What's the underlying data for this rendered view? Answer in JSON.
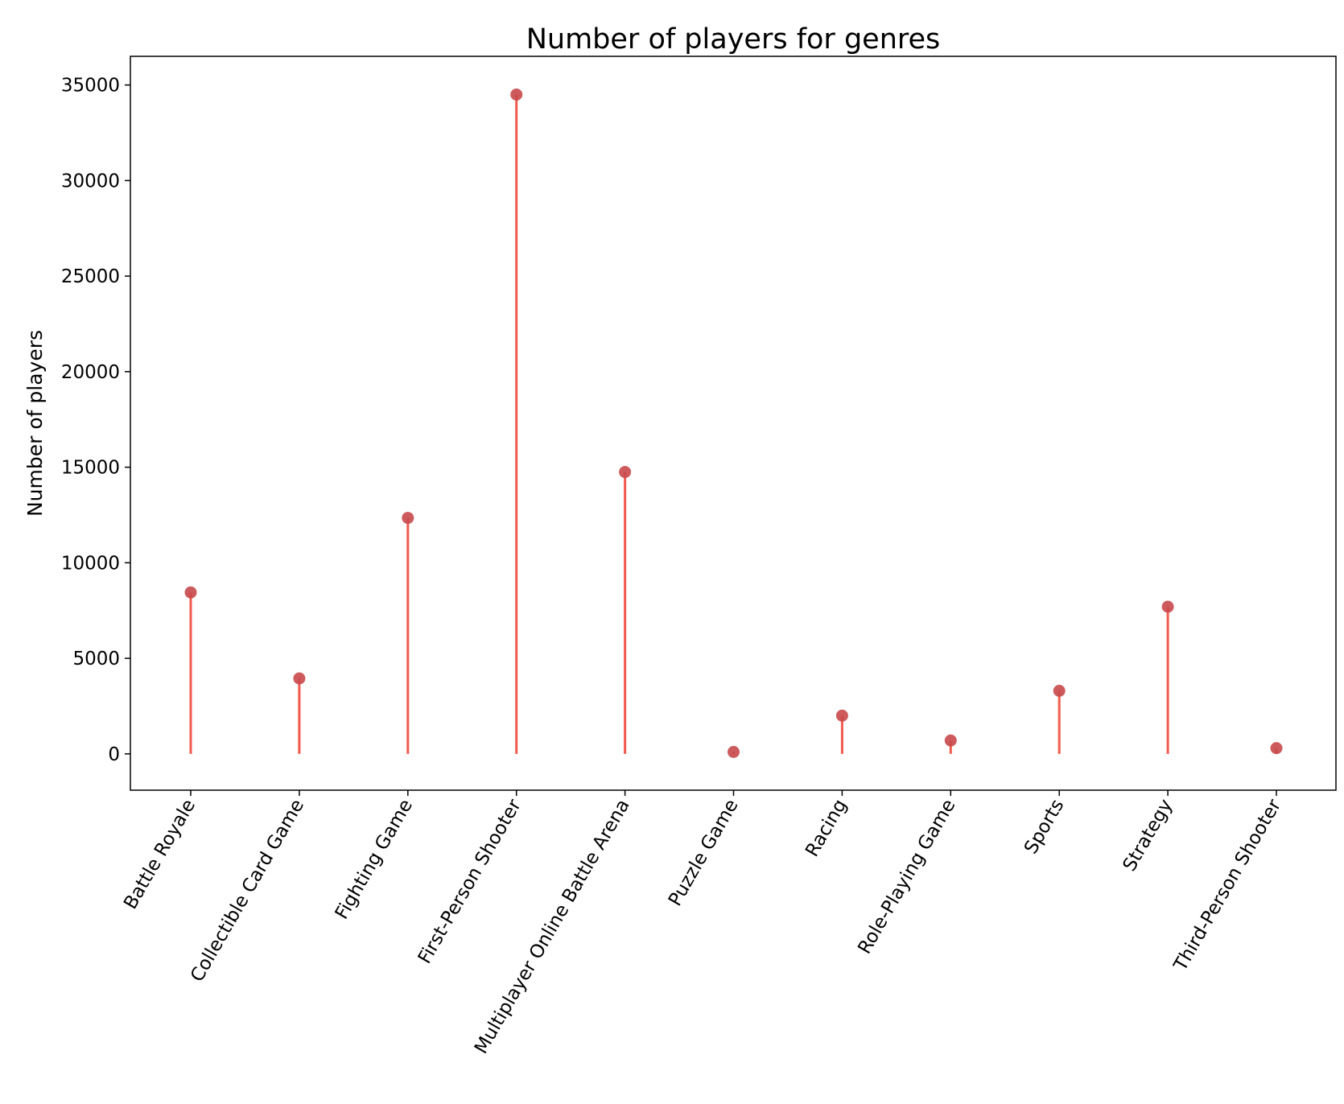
{
  "chart_data": {
    "type": "lollipop",
    "title": "Number of players for genres",
    "xlabel": "",
    "ylabel": "Number of players",
    "categories": [
      "Battle Royale",
      "Collectible Card Game",
      "Fighting Game",
      "First-Person Shooter",
      "Multiplayer Online Battle Arena",
      "Puzzle Game",
      "Racing",
      "Role-Playing Game",
      "Sports",
      "Strategy",
      "Third-Person Shooter"
    ],
    "values": [
      8450,
      3950,
      12350,
      34500,
      14750,
      100,
      2000,
      700,
      3300,
      7700,
      300
    ],
    "ylim": [
      -1900,
      36500
    ],
    "yticks": [
      0,
      5000,
      10000,
      15000,
      20000,
      25000,
      30000,
      35000
    ],
    "grid": false,
    "legend": "none",
    "colors": {
      "stem": "#f25a4e",
      "marker": "#c8484a"
    }
  }
}
